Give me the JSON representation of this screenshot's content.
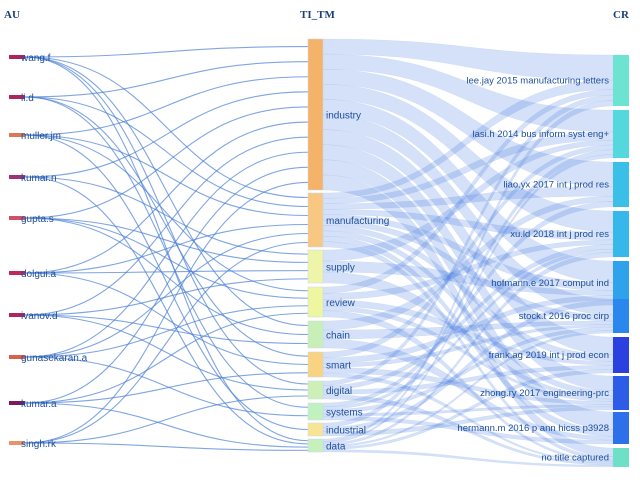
{
  "columns": {
    "left": "AU",
    "middle": "TI_TM",
    "right": "CR"
  },
  "authors": [
    {
      "label": "wang.f",
      "color": "#b0245c"
    },
    {
      "label": "li.d",
      "color": "#b0245c"
    },
    {
      "label": "muller.jm",
      "color": "#d97a52"
    },
    {
      "label": "kumar.n",
      "color": "#a0327a"
    },
    {
      "label": "gupta.s",
      "color": "#d0506a"
    },
    {
      "label": "dolgui.a",
      "color": "#c0285a"
    },
    {
      "label": "ivanov.d",
      "color": "#b0245c"
    },
    {
      "label": "gunasekaran.a",
      "color": "#d9604a"
    },
    {
      "label": "kumar.a",
      "color": "#7a1a5c"
    },
    {
      "label": "singh.rk",
      "color": "#e8946a"
    }
  ],
  "terms": [
    {
      "label": "industry",
      "color": "#f5b36a"
    },
    {
      "label": "manufacturing",
      "color": "#f8c883"
    },
    {
      "label": "supply",
      "color": "#eef5a8"
    },
    {
      "label": "review",
      "color": "#eef7a0"
    },
    {
      "label": "chain",
      "color": "#c8efb8"
    },
    {
      "label": "smart",
      "color": "#f9d382"
    },
    {
      "label": "digital",
      "color": "#cdf0b8"
    },
    {
      "label": "systems",
      "color": "#bff2c0"
    },
    {
      "label": "industrial",
      "color": "#f7e495"
    },
    {
      "label": "data",
      "color": "#c6f1bc"
    }
  ],
  "references": [
    {
      "label": "lee.jay 2015 manufacturing letters",
      "color": "#6de3d2"
    },
    {
      "label": "lasi.h 2014 bus inform syst eng+",
      "color": "#55d8dd"
    },
    {
      "label": "liao.yx 2017 int j prod res",
      "color": "#39bfe8"
    },
    {
      "label": "xu.ld 2018 int j prod res",
      "color": "#36b9ea"
    },
    {
      "label": "hofmann.e 2017 comput ind",
      "color": "#2fa2ee"
    },
    {
      "label": "stock.t 2016 proc cirp",
      "color": "#2a87ee"
    },
    {
      "label": "frank.ag 2019 int j prod econ",
      "color": "#2a40e0"
    },
    {
      "label": "zhong.ry 2017 engineering-prc",
      "color": "#2c5ce8"
    },
    {
      "label": "hermann.m 2016 p ann hicss p3928",
      "color": "#2e70ea"
    },
    {
      "label": "no title captured",
      "color": "#6fe0c8"
    }
  ]
}
